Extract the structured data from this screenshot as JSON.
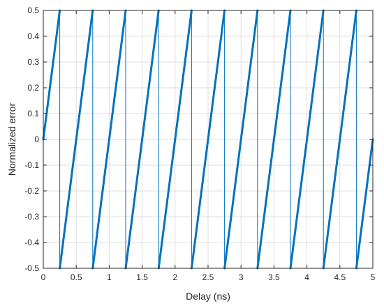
{
  "chart_data": {
    "type": "line",
    "title": "",
    "xlabel": "Delay (ns)",
    "ylabel": "Normalized error",
    "xlim": [
      0,
      5
    ],
    "ylim": [
      -0.5,
      0.5
    ],
    "xticks": [
      0,
      0.5,
      1,
      1.5,
      2,
      2.5,
      3,
      3.5,
      4,
      4.5,
      5
    ],
    "xtick_labels": [
      "0",
      "0.5",
      "1",
      "1.5",
      "2",
      "2.5",
      "3",
      "3.5",
      "4",
      "4.5",
      "5"
    ],
    "yticks": [
      -0.5,
      -0.4,
      -0.3,
      -0.2,
      -0.1,
      0,
      0.1,
      0.2,
      0.3,
      0.4,
      0.5
    ],
    "ytick_labels": [
      "-0.5",
      "-0.4",
      "-0.3",
      "-0.2",
      "-0.1",
      "0",
      "0.1",
      "0.2",
      "0.3",
      "0.4",
      "0.5"
    ],
    "grid": true,
    "legend": "none",
    "series": [
      {
        "color": "#0072BD",
        "shape": "sawtooth",
        "x": [
          0,
          0.25,
          0.25,
          0.75,
          0.75,
          1.25,
          1.25,
          1.75,
          1.75,
          2.25,
          2.25,
          2.75,
          2.75,
          3.25,
          3.25,
          3.75,
          3.75,
          4.25,
          4.25,
          4.75,
          4.75,
          5
        ],
        "y": [
          0,
          0.5,
          -0.5,
          0.5,
          -0.5,
          0.5,
          -0.5,
          0.5,
          -0.5,
          0.5,
          -0.5,
          0.5,
          -0.5,
          0.5,
          -0.5,
          0.5,
          -0.5,
          0.5,
          -0.5,
          0.5,
          -0.5,
          0
        ]
      }
    ]
  }
}
